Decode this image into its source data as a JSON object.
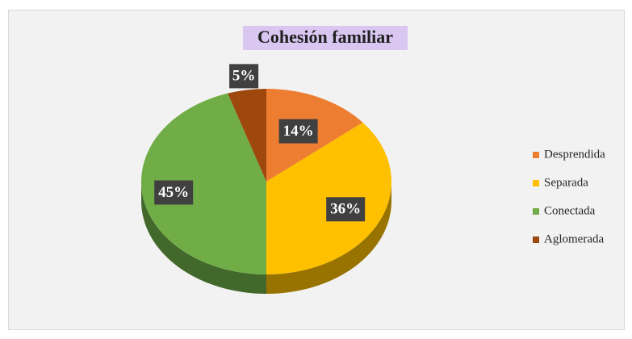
{
  "chart_data": {
    "type": "pie",
    "title": "Cohesión familiar",
    "categories": [
      "Desprendida",
      "Separada",
      "Conectada",
      "Aglomerada"
    ],
    "values": [
      14,
      36,
      45,
      5
    ],
    "value_labels": [
      "14%",
      "36%",
      "45%",
      "5%"
    ],
    "colors": [
      "#ED7D31",
      "#FFC000",
      "#70AD47",
      "#9E480E"
    ],
    "legend": "right"
  }
}
